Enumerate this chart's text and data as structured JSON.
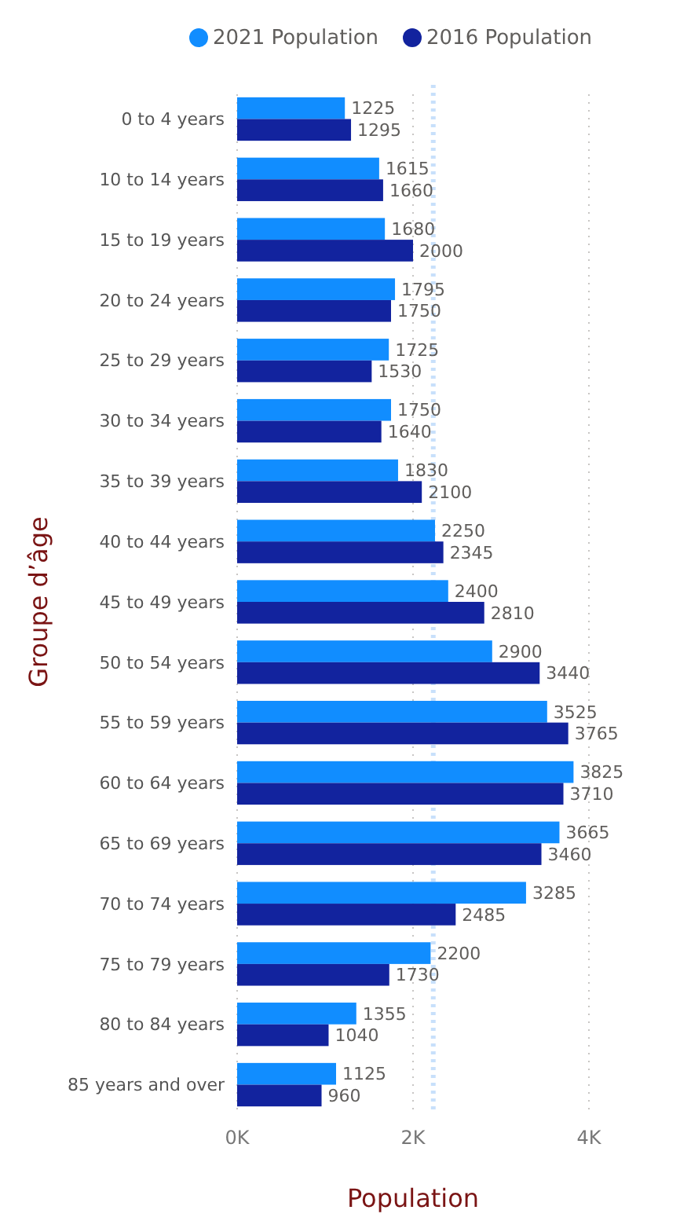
{
  "chart_data": {
    "type": "bar",
    "orientation": "horizontal",
    "xlabel": "Population",
    "ylabel": "Groupe d’âge",
    "categories": [
      "0 to 4 years",
      "10 to 14 years",
      "15 to 19 years",
      "20 to 24 years",
      "25 to 29 years",
      "30 to 34 years",
      "35 to 39 years",
      "40 to 44 years",
      "45 to 49 years",
      "50 to 54 years",
      "55 to 59 years",
      "60 to 64 years",
      "65 to 69 years",
      "70 to 74 years",
      "75 to 79 years",
      "80 to 84 years",
      "85 years and over"
    ],
    "series": [
      {
        "name": "2021 Population",
        "color": "#118dff",
        "values": [
          1225,
          1615,
          1680,
          1795,
          1725,
          1750,
          1830,
          2250,
          2400,
          2900,
          3525,
          3825,
          3665,
          3285,
          2200,
          1355,
          1125
        ]
      },
      {
        "name": "2016 Population",
        "color": "#12239e",
        "values": [
          1295,
          1660,
          2000,
          1750,
          1530,
          1640,
          2100,
          2345,
          2810,
          3440,
          3765,
          3710,
          3460,
          2485,
          1730,
          1040,
          960
        ]
      }
    ],
    "xlim": [
      0,
      4000
    ],
    "xticks": [
      {
        "value": 0,
        "label": "0K"
      },
      {
        "value": 2000,
        "label": "2K"
      },
      {
        "value": 4000,
        "label": "4K"
      }
    ],
    "ref_lines": [
      {
        "axis": "x",
        "value": 2230,
        "color": "#c8e0fb",
        "line_style": "dotted"
      }
    ],
    "data_labels": true,
    "grid": "x",
    "legend": "top"
  }
}
